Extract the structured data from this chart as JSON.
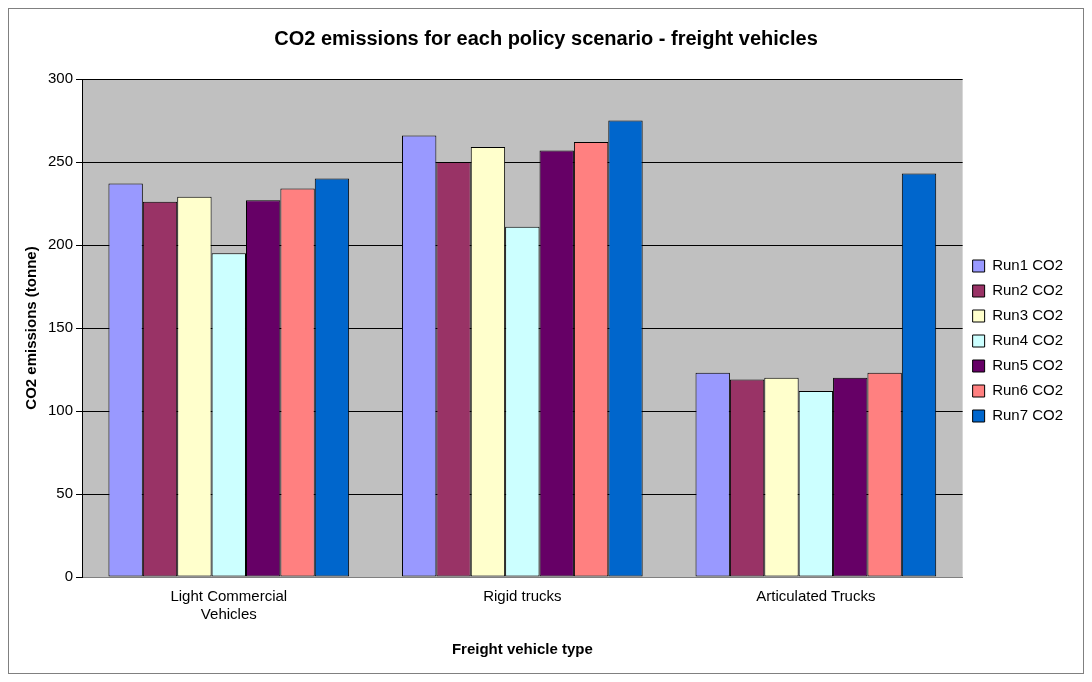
{
  "chart_data": {
    "type": "bar",
    "title": "CO2 emissions for each policy scenario - freight vehicles",
    "xlabel": "Freight vehicle type",
    "ylabel": "CO2 emissions (tonne)",
    "categories": [
      "Light Commercial Vehicles",
      "Rigid trucks",
      "Articulated Trucks"
    ],
    "series": [
      {
        "name": "Run1 CO2",
        "color": "#9999ff",
        "values": [
          237,
          266,
          123
        ]
      },
      {
        "name": "Run2 CO2",
        "color": "#993366",
        "values": [
          226,
          250,
          119
        ]
      },
      {
        "name": "Run3 CO2",
        "color": "#ffffcc",
        "values": [
          229,
          259,
          120
        ]
      },
      {
        "name": "Run4 CO2",
        "color": "#ccffff",
        "values": [
          195,
          211,
          112
        ]
      },
      {
        "name": "Run5 CO2",
        "color": "#660066",
        "values": [
          227,
          257,
          120
        ]
      },
      {
        "name": "Run6 CO2",
        "color": "#ff8080",
        "values": [
          234,
          262,
          123
        ]
      },
      {
        "name": "Run7 CO2",
        "color": "#0066cc",
        "values": [
          240,
          275,
          243
        ]
      }
    ],
    "ylim": [
      0,
      300
    ],
    "yticks": [
      0,
      50,
      100,
      150,
      200,
      250,
      300
    ],
    "grid": "y",
    "legend": "right"
  }
}
